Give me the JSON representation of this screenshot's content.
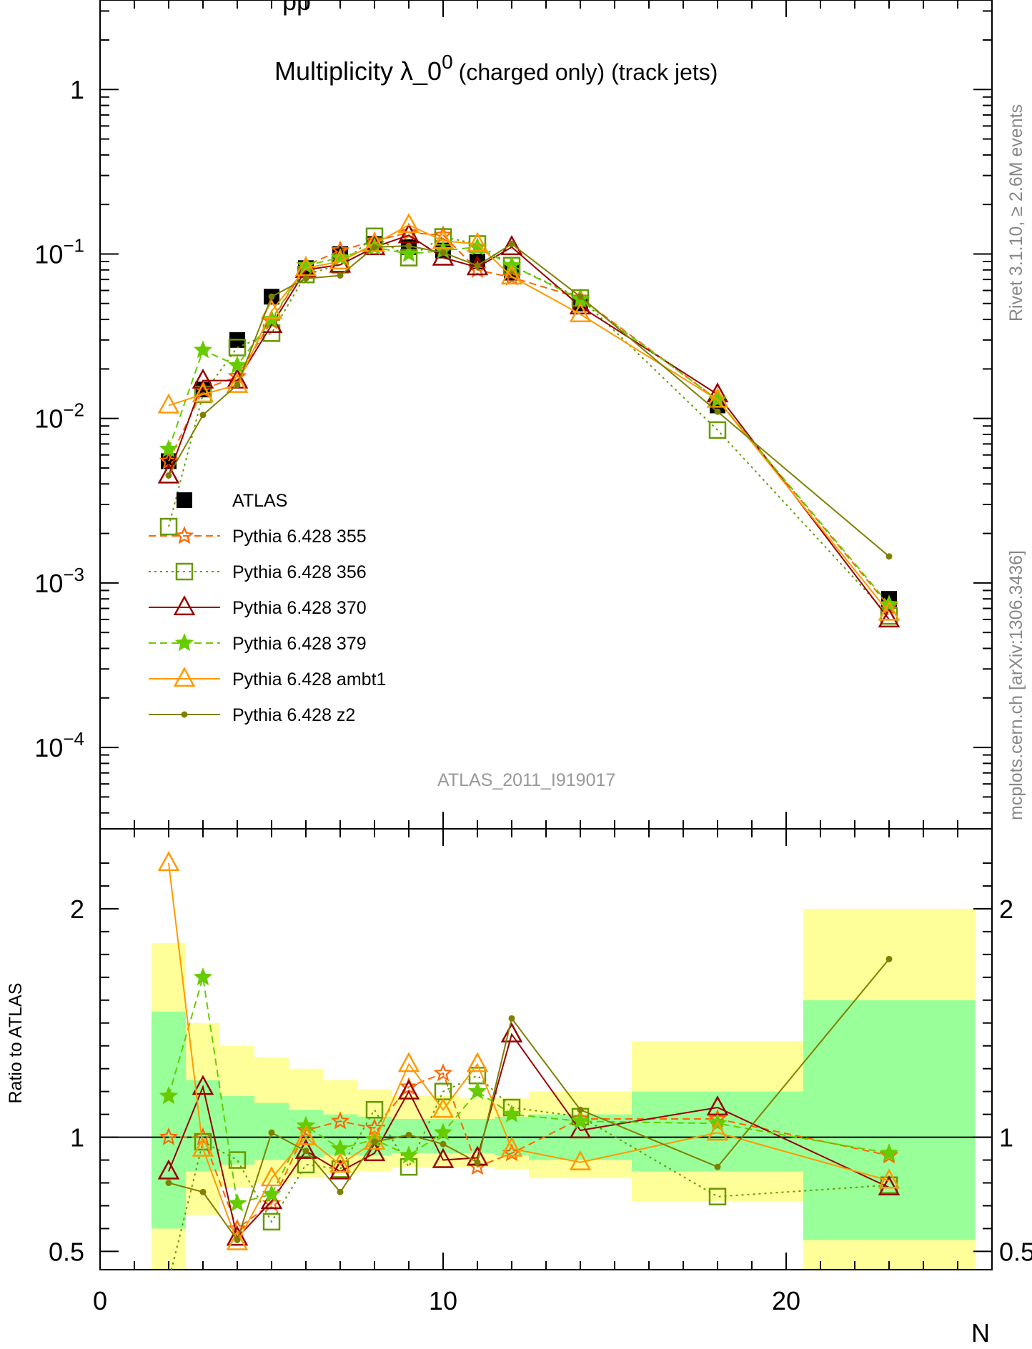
{
  "header": {
    "top_cut_text": "pp",
    "title_main": "Multiplicity λ_0",
    "title_sup": "0",
    "title_sub": "(charged only) (track jets)",
    "analysis_label": "ATLAS_2011_I919017",
    "side_label_1": "Rivet 3.1.10, ≥ 2.6M events",
    "side_label_2": "mcplots.cern.ch [arXiv:1306.3436]"
  },
  "chart_data": {
    "type": "scatter",
    "x_label": "N",
    "ratio_label": "Ratio to ATLAS",
    "main_yscale": "log",
    "main_ylim": [
      3.2e-05,
      3.5
    ],
    "ratio_ylim": [
      0.42,
      2.35
    ],
    "xlim": [
      0,
      26
    ],
    "x_ticks": [
      0,
      10,
      20
    ],
    "main_y_ticks": [
      {
        "value": 1,
        "mant": "1",
        "exp": ""
      },
      {
        "value": 0.1,
        "mant": "10",
        "exp": "−1"
      },
      {
        "value": 0.01,
        "mant": "10",
        "exp": "−2"
      },
      {
        "value": 0.001,
        "mant": "10",
        "exp": "−3"
      },
      {
        "value": 0.0001,
        "mant": "10",
        "exp": "−4"
      }
    ],
    "ratio_y_ticks": [
      {
        "value": 2,
        "label": "2"
      },
      {
        "value": 1,
        "label": "1"
      },
      {
        "value": 0.5,
        "label": "0.5"
      }
    ],
    "data": {
      "name": "ATLAS",
      "x": [
        2,
        3,
        4,
        5,
        6,
        7,
        8,
        9,
        10,
        11,
        12,
        14,
        18,
        23
      ],
      "y": [
        0.0055,
        0.015,
        0.03,
        0.055,
        0.082,
        0.1,
        0.115,
        0.11,
        0.105,
        0.09,
        0.077,
        0.05,
        0.012,
        0.0008
      ]
    },
    "bands": [
      {
        "x0": 1.5,
        "x1": 2.5,
        "green": [
          0.6,
          1.55
        ],
        "yellow": [
          0.4,
          1.85
        ]
      },
      {
        "x0": 2.5,
        "x1": 3.5,
        "green": [
          0.85,
          1.25
        ],
        "yellow": [
          0.66,
          1.5
        ]
      },
      {
        "x0": 3.5,
        "x1": 4.5,
        "green": [
          0.88,
          1.18
        ],
        "yellow": [
          0.78,
          1.4
        ]
      },
      {
        "x0": 4.5,
        "x1": 5.5,
        "green": [
          0.9,
          1.15
        ],
        "yellow": [
          0.8,
          1.35
        ]
      },
      {
        "x0": 5.5,
        "x1": 6.5,
        "green": [
          0.91,
          1.12
        ],
        "yellow": [
          0.82,
          1.3
        ]
      },
      {
        "x0": 6.5,
        "x1": 7.5,
        "green": [
          0.92,
          1.1
        ],
        "yellow": [
          0.84,
          1.25
        ]
      },
      {
        "x0": 7.5,
        "x1": 8.5,
        "green": [
          0.92,
          1.09
        ],
        "yellow": [
          0.85,
          1.21
        ]
      },
      {
        "x0": 8.5,
        "x1": 9.5,
        "green": [
          0.93,
          1.08
        ],
        "yellow": [
          0.87,
          1.18
        ]
      },
      {
        "x0": 9.5,
        "x1": 10.5,
        "green": [
          0.93,
          1.08
        ],
        "yellow": [
          0.87,
          1.18
        ]
      },
      {
        "x0": 10.5,
        "x1": 11.5,
        "green": [
          0.93,
          1.08
        ],
        "yellow": [
          0.87,
          1.17
        ]
      },
      {
        "x0": 11.5,
        "x1": 12.5,
        "green": [
          0.92,
          1.09
        ],
        "yellow": [
          0.86,
          1.17
        ]
      },
      {
        "x0": 12.5,
        "x1": 15.5,
        "green": [
          0.9,
          1.1
        ],
        "yellow": [
          0.82,
          1.2
        ]
      },
      {
        "x0": 15.5,
        "x1": 20.5,
        "green": [
          0.85,
          1.2
        ],
        "yellow": [
          0.72,
          1.42
        ]
      },
      {
        "x0": 20.5,
        "x1": 25.5,
        "green": [
          0.55,
          1.6
        ],
        "yellow": [
          0.42,
          2.0
        ]
      }
    ],
    "series": [
      {
        "name": "Pythia 6.428 355",
        "color": "#ff6600",
        "dash": "10,6",
        "marker": "star",
        "filled": false,
        "x": [
          2,
          3,
          4,
          5,
          6,
          7,
          8,
          9,
          10,
          11,
          12,
          14,
          18,
          23
        ],
        "y": [
          0.0055,
          0.015,
          0.018,
          0.039,
          0.085,
          0.105,
          0.12,
          0.135,
          0.13,
          0.08,
          0.072,
          0.054,
          0.013,
          0.00072
        ],
        "ratio": [
          1.0,
          1.0,
          0.6,
          0.71,
          1.03,
          1.07,
          1.04,
          1.22,
          1.28,
          0.87,
          0.93,
          1.08,
          1.08,
          0.92
        ]
      },
      {
        "name": "Pythia 6.428 356",
        "color": "#669900",
        "dash": "3,5",
        "marker": "square",
        "filled": false,
        "x": [
          2,
          3,
          4,
          5,
          6,
          7,
          8,
          9,
          10,
          11,
          12,
          14,
          18,
          23
        ],
        "y": [
          0.0022,
          0.014,
          0.027,
          0.033,
          0.075,
          0.086,
          0.128,
          0.095,
          0.127,
          0.115,
          0.085,
          0.054,
          0.0085,
          0.00063
        ],
        "ratio": [
          0.37,
          0.98,
          0.9,
          0.63,
          0.88,
          0.86,
          1.12,
          0.87,
          1.2,
          1.27,
          1.13,
          1.09,
          0.74,
          0.79
        ]
      },
      {
        "name": "Pythia 6.428 370",
        "color": "#990000",
        "dash": "",
        "marker": "triangle",
        "filled": false,
        "x": [
          2,
          3,
          4,
          5,
          6,
          7,
          8,
          9,
          10,
          11,
          12,
          14,
          18,
          23
        ],
        "y": [
          0.0045,
          0.017,
          0.017,
          0.037,
          0.08,
          0.086,
          0.11,
          0.13,
          0.095,
          0.083,
          0.11,
          0.048,
          0.014,
          0.0006
        ],
        "ratio": [
          0.85,
          1.22,
          0.56,
          0.72,
          0.94,
          0.85,
          0.93,
          1.2,
          0.9,
          0.91,
          1.45,
          1.03,
          1.13,
          0.78
        ]
      },
      {
        "name": "Pythia 6.428 379",
        "color": "#66cc00",
        "dash": "10,6",
        "marker": "star",
        "filled": true,
        "x": [
          2,
          3,
          4,
          5,
          6,
          7,
          8,
          9,
          10,
          11,
          12,
          14,
          18,
          23
        ],
        "y": [
          0.0065,
          0.026,
          0.021,
          0.04,
          0.085,
          0.095,
          0.11,
          0.1,
          0.105,
          0.11,
          0.085,
          0.053,
          0.013,
          0.00074
        ],
        "ratio": [
          1.18,
          1.7,
          0.71,
          0.75,
          1.05,
          0.95,
          0.99,
          0.92,
          1.02,
          1.2,
          1.1,
          1.07,
          1.06,
          0.93
        ]
      },
      {
        "name": "Pythia 6.428 ambt1",
        "color": "#ff9900",
        "dash": "",
        "marker": "triangle",
        "filled": false,
        "x": [
          2,
          3,
          4,
          5,
          6,
          7,
          8,
          9,
          10,
          11,
          12,
          14,
          18,
          23
        ],
        "y": [
          0.012,
          0.014,
          0.016,
          0.045,
          0.082,
          0.09,
          0.115,
          0.15,
          0.12,
          0.115,
          0.073,
          0.043,
          0.013,
          0.00066
        ],
        "ratio": [
          2.2,
          0.95,
          0.54,
          0.82,
          1.0,
          0.88,
          0.98,
          1.32,
          1.12,
          1.32,
          0.95,
          0.89,
          1.02,
          0.81
        ]
      },
      {
        "name": "Pythia 6.428 z2",
        "color": "#808000",
        "dash": "",
        "marker": "dot",
        "filled": true,
        "x": [
          2,
          3,
          4,
          5,
          6,
          7,
          8,
          9,
          10,
          11,
          12,
          14,
          18,
          23
        ],
        "y": [
          0.0045,
          0.0105,
          0.016,
          0.055,
          0.071,
          0.074,
          0.11,
          0.112,
          0.102,
          0.085,
          0.115,
          0.055,
          0.011,
          0.00145
        ],
        "ratio": [
          0.8,
          0.76,
          0.55,
          1.02,
          0.94,
          0.76,
          0.98,
          1.01,
          0.97,
          0.89,
          1.52,
          1.12,
          0.87,
          1.78
        ]
      }
    ]
  }
}
